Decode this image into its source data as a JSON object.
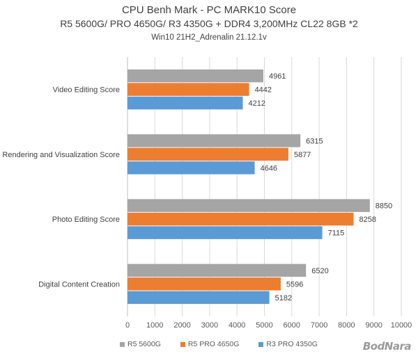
{
  "chart_data": {
    "type": "bar",
    "orientation": "horizontal",
    "title": "CPU Benh Mark - PC MARK10 Score",
    "subtitle": "R5 5600G/ PRO 4650G/ R3 4350G + DDR4 3,200MHz CL22 8GB *2",
    "subtitle2": "Win10 21H2_Adrenalin 21.12.1v",
    "categories": [
      "Video Editing Score",
      "Rendering and Visualization Score",
      "Photo Editing Score",
      "Digital Content Creation"
    ],
    "series": [
      {
        "name": "R5 5600G",
        "color": "#a5a5a5",
        "values": [
          4961,
          6315,
          8850,
          6520
        ]
      },
      {
        "name": "R5 PRO 4650G",
        "color": "#ed7d31",
        "values": [
          4442,
          5877,
          8258,
          5596
        ]
      },
      {
        "name": "R3 PRO 4350G",
        "color": "#5b9bd5",
        "values": [
          4212,
          4646,
          7115,
          5182
        ]
      }
    ],
    "xlim": [
      0,
      10000
    ],
    "xticks": [
      "0",
      "1000",
      "2000",
      "3000",
      "4000",
      "5000",
      "6000",
      "7000",
      "8000",
      "9000",
      "10000"
    ],
    "grid": true,
    "legend": "bottom"
  },
  "watermark": "BodNara"
}
